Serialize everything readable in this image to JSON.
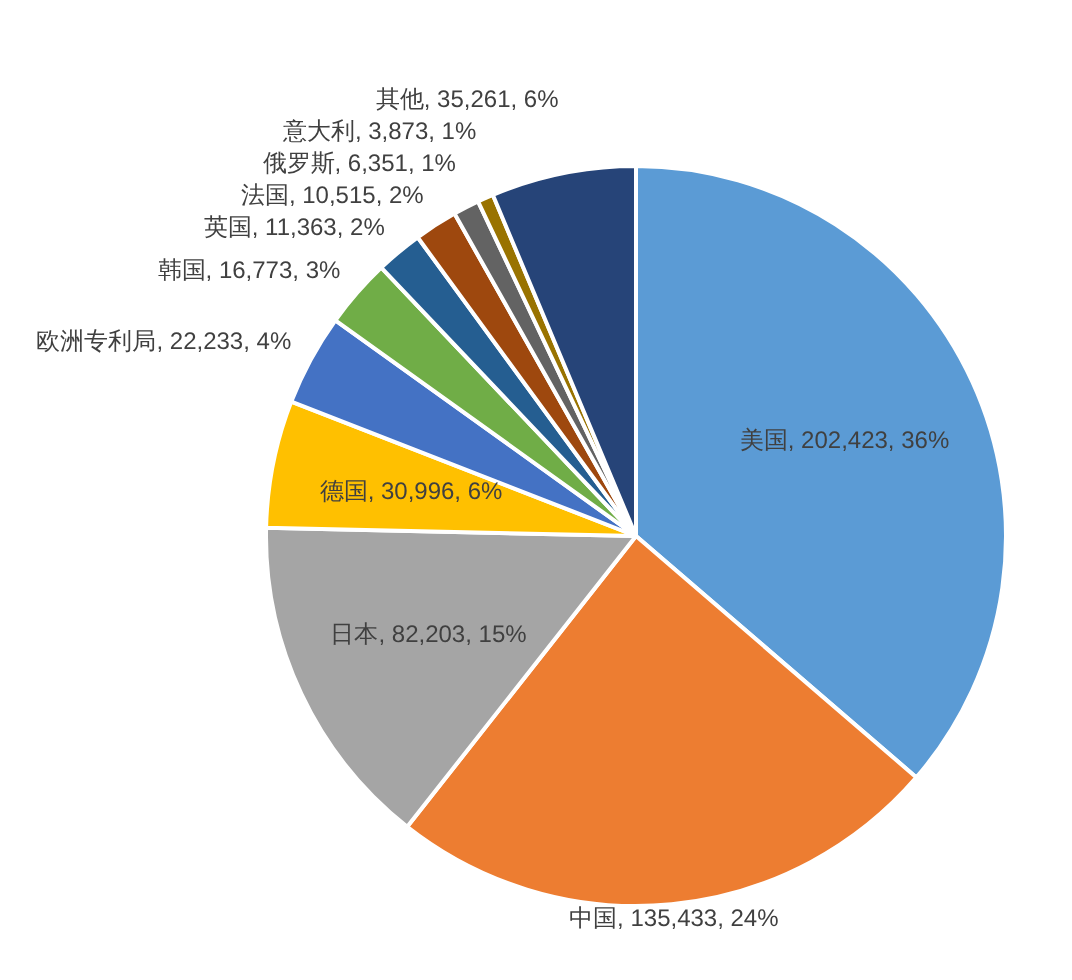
{
  "chart_data": {
    "type": "pie",
    "categories": [
      "美国",
      "中国",
      "日本",
      "德国",
      "欧洲专利局",
      "韩国",
      "英国",
      "法国",
      "俄罗斯",
      "意大利",
      "其他"
    ],
    "values": [
      202423,
      135433,
      82203,
      30996,
      22233,
      16773,
      11363,
      10515,
      6351,
      3873,
      35261
    ],
    "value_labels": [
      "202,423, 36%",
      "135,433, 24%",
      "82,203, 15%",
      "30,996, 6%",
      "22,233, 4%",
      "16,773, 3%",
      "11,363, 2%",
      "10,515, 2%",
      "6,351, 1%",
      "3,873, 1%",
      "35,261, 6%"
    ],
    "colors": [
      "#5b9bd5",
      "#ed7d31",
      "#a5a5a5",
      "#ffc000",
      "#4472c4",
      "#70ad47",
      "#255e91",
      "#9e480e",
      "#636363",
      "#997300",
      "#264478"
    ]
  }
}
